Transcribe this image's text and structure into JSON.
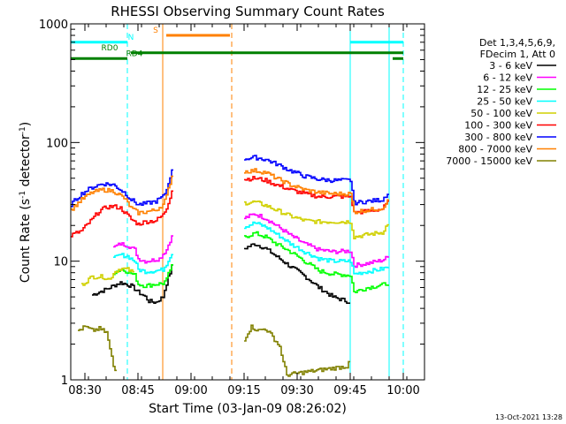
{
  "chart_data": {
    "type": "line",
    "title": "RHESSI Observing Summary Count Rates",
    "xlabel": "Start Time (03-Jan-09 08:26:02)",
    "ylabel_prefix": "Count Rate (s",
    "ylabel_suffix": " detector",
    "ylabel_close": ")",
    "ylabel_exp": "-1",
    "x_range_minutes": [
      0,
      100
    ],
    "y_range": [
      1,
      1000
    ],
    "y_scale": "log",
    "x_ticks": [
      {
        "label": "08:30",
        "t": 4
      },
      {
        "label": "08:45",
        "t": 19
      },
      {
        "label": "09:00",
        "t": 34
      },
      {
        "label": "09:15",
        "t": 49
      },
      {
        "label": "09:30",
        "t": 64
      },
      {
        "label": "09:45",
        "t": 79
      },
      {
        "label": "10:00",
        "t": 94
      }
    ],
    "y_ticks": [
      {
        "label": "1",
        "v": 1
      },
      {
        "label": "10",
        "v": 10
      },
      {
        "label": "100",
        "v": 100
      },
      {
        "label": "1000",
        "v": 1000
      }
    ],
    "legend": {
      "header1": "Det 1,3,4,5,6,9,",
      "header2": "FDecim 1, Att 0",
      "placement": "right"
    },
    "series": [
      {
        "name": "3 - 6 keV",
        "color": "#000000",
        "seg1": [
          [
            6,
            5.2
          ],
          [
            10,
            5.8
          ],
          [
            14,
            6.6
          ],
          [
            17,
            6.2
          ],
          [
            19,
            5.5
          ],
          [
            21,
            5.0
          ],
          [
            22,
            4.6
          ],
          [
            24,
            4.5
          ],
          [
            26,
            5.0
          ],
          [
            27,
            6.5
          ],
          [
            28,
            8.0
          ],
          [
            29,
            10.0
          ]
        ],
        "seg2": [
          [
            49,
            12.8
          ],
          [
            52,
            14.0
          ],
          [
            55,
            12.8
          ],
          [
            58,
            11.0
          ],
          [
            62,
            9.0
          ],
          [
            66,
            7.5
          ],
          [
            70,
            6.0
          ],
          [
            74,
            5.0
          ],
          [
            78,
            4.6
          ],
          [
            79,
            4.5
          ]
        ]
      },
      {
        "name": "6 - 12 keV",
        "color": "#ff00ff",
        "seg1": [
          [
            12,
            13.0
          ],
          [
            14,
            14.0
          ],
          [
            16,
            13.6
          ],
          [
            18,
            12.5
          ],
          [
            19,
            10.5
          ],
          [
            21,
            10.0
          ],
          [
            23,
            10.2
          ],
          [
            25,
            10.5
          ],
          [
            27,
            12.5
          ],
          [
            28,
            15.0
          ],
          [
            29,
            17.0
          ]
        ],
        "seg2": [
          [
            49,
            23.0
          ],
          [
            52,
            25.0
          ],
          [
            55,
            23.0
          ],
          [
            58,
            20.0
          ],
          [
            62,
            16.5
          ],
          [
            66,
            14.0
          ],
          [
            70,
            12.5
          ],
          [
            74,
            12.0
          ],
          [
            79,
            12.2
          ],
          [
            80,
            9.2
          ],
          [
            84,
            9.6
          ],
          [
            88,
            10.2
          ],
          [
            90,
            11.0
          ]
        ]
      },
      {
        "name": "12 - 25 keV",
        "color": "#00ff00",
        "seg1": [
          [
            12,
            8.0
          ],
          [
            14,
            8.5
          ],
          [
            16,
            8.2
          ],
          [
            18,
            7.6
          ],
          [
            19,
            6.4
          ],
          [
            21,
            6.2
          ],
          [
            24,
            6.4
          ],
          [
            26,
            6.5
          ],
          [
            27,
            7.0
          ],
          [
            28,
            8.5
          ],
          [
            29,
            9.5
          ]
        ],
        "seg2": [
          [
            49,
            16.0
          ],
          [
            52,
            17.2
          ],
          [
            55,
            16.0
          ],
          [
            58,
            14.0
          ],
          [
            62,
            12.0
          ],
          [
            66,
            10.0
          ],
          [
            70,
            8.3
          ],
          [
            74,
            7.8
          ],
          [
            79,
            7.6
          ],
          [
            80,
            5.5
          ],
          [
            84,
            6.0
          ],
          [
            88,
            6.3
          ],
          [
            90,
            6.6
          ]
        ]
      },
      {
        "name": "25 - 50 keV",
        "color": "#00ffff",
        "seg1": [
          [
            12,
            10.5
          ],
          [
            14,
            11.3
          ],
          [
            16,
            11.0
          ],
          [
            18,
            10.0
          ],
          [
            19,
            8.5
          ],
          [
            21,
            8.2
          ],
          [
            24,
            8.3
          ],
          [
            26,
            8.5
          ],
          [
            27,
            9.5
          ],
          [
            28,
            11.0
          ],
          [
            29,
            12.0
          ]
        ],
        "seg2": [
          [
            49,
            19.5
          ],
          [
            52,
            21.0
          ],
          [
            55,
            19.5
          ],
          [
            58,
            17.0
          ],
          [
            62,
            14.0
          ],
          [
            66,
            12.0
          ],
          [
            70,
            10.5
          ],
          [
            74,
            10.0
          ],
          [
            79,
            10.0
          ],
          [
            80,
            7.8
          ],
          [
            84,
            8.2
          ],
          [
            88,
            8.6
          ],
          [
            90,
            9.0
          ]
        ]
      },
      {
        "name": "50 - 100 keV",
        "color": "#d0d000",
        "seg1": [
          [
            3,
            6.3
          ],
          [
            6,
            7.4
          ],
          [
            9,
            7.4
          ],
          [
            11,
            7.0
          ],
          [
            12,
            8.0
          ],
          [
            14,
            8.7
          ],
          [
            16,
            8.5
          ],
          [
            18,
            7.9
          ]
        ],
        "seg2": [
          [
            49,
            31.0
          ],
          [
            52,
            31.5
          ],
          [
            55,
            29.5
          ],
          [
            58,
            27.0
          ],
          [
            62,
            24.0
          ],
          [
            66,
            22.0
          ],
          [
            70,
            21.5
          ],
          [
            74,
            21.5
          ],
          [
            79,
            21.5
          ],
          [
            80,
            16.0
          ],
          [
            84,
            16.8
          ],
          [
            88,
            17.5
          ],
          [
            89,
            19.5
          ],
          [
            90,
            20.5
          ]
        ]
      },
      {
        "name": "100 - 300 keV",
        "color": "#ff0000",
        "seg1": [
          [
            0,
            16.5
          ],
          [
            3,
            18.0
          ],
          [
            6,
            22.5
          ],
          [
            8,
            26.5
          ],
          [
            10,
            28.5
          ],
          [
            12,
            29.0
          ],
          [
            14,
            28.0
          ],
          [
            17,
            22.5
          ],
          [
            19,
            20.5
          ],
          [
            21,
            21.5
          ],
          [
            24,
            22.0
          ],
          [
            26,
            24.5
          ],
          [
            27,
            28.0
          ],
          [
            28,
            35.0
          ],
          [
            29,
            45.0
          ]
        ],
        "seg2": [
          [
            49,
            49.0
          ],
          [
            52,
            50.0
          ],
          [
            55,
            48.0
          ],
          [
            58,
            44.0
          ],
          [
            62,
            40.0
          ],
          [
            66,
            37.0
          ],
          [
            70,
            35.0
          ],
          [
            74,
            35.0
          ],
          [
            79,
            35.0
          ],
          [
            80,
            25.5
          ],
          [
            84,
            26.5
          ],
          [
            88,
            27.5
          ],
          [
            89,
            30.0
          ],
          [
            90,
            32.0
          ]
        ]
      },
      {
        "name": "300 - 800 keV",
        "color": "#0000ff",
        "seg1": [
          [
            0,
            30.0
          ],
          [
            3,
            37.0
          ],
          [
            6,
            42.0
          ],
          [
            9,
            45.0
          ],
          [
            12,
            44.0
          ],
          [
            15,
            38.0
          ],
          [
            17,
            33.0
          ],
          [
            19,
            30.0
          ],
          [
            21,
            30.5
          ],
          [
            24,
            32.0
          ],
          [
            26,
            35.0
          ],
          [
            27,
            40.0
          ],
          [
            28,
            52.0
          ],
          [
            29,
            62.0
          ]
        ],
        "seg2": [
          [
            49,
            73.0
          ],
          [
            52,
            75.0
          ],
          [
            55,
            72.0
          ],
          [
            58,
            66.0
          ],
          [
            62,
            58.0
          ],
          [
            66,
            52.0
          ],
          [
            70,
            49.0
          ],
          [
            74,
            48.0
          ],
          [
            79,
            48.0
          ],
          [
            80,
            31.0
          ],
          [
            84,
            32.0
          ],
          [
            88,
            33.0
          ],
          [
            89,
            36.0
          ],
          [
            90,
            38.0
          ]
        ]
      },
      {
        "name": "800 - 7000 keV",
        "color": "#ff8000",
        "seg1": [
          [
            0,
            27.0
          ],
          [
            3,
            33.0
          ],
          [
            6,
            38.0
          ],
          [
            9,
            40.0
          ],
          [
            12,
            39.0
          ],
          [
            15,
            34.0
          ],
          [
            17,
            28.0
          ],
          [
            19,
            25.5
          ],
          [
            21,
            26.0
          ],
          [
            24,
            27.0
          ],
          [
            26,
            30.0
          ],
          [
            27,
            35.0
          ],
          [
            28,
            46.0
          ],
          [
            29,
            58.0
          ]
        ],
        "seg2": [
          [
            49,
            57.0
          ],
          [
            52,
            58.0
          ],
          [
            55,
            56.0
          ],
          [
            58,
            50.0
          ],
          [
            62,
            44.0
          ],
          [
            66,
            40.0
          ],
          [
            70,
            38.0
          ],
          [
            74,
            37.0
          ],
          [
            79,
            37.0
          ],
          [
            80,
            26.0
          ],
          [
            84,
            27.0
          ],
          [
            88,
            28.0
          ],
          [
            89,
            31.0
          ],
          [
            90,
            33.0
          ]
        ]
      },
      {
        "name": "7000 - 15000 keV",
        "color": "#808000",
        "seg1": [
          [
            2,
            2.6
          ],
          [
            4,
            2.8
          ],
          [
            6,
            2.6
          ],
          [
            8,
            2.7
          ],
          [
            10,
            2.5
          ],
          [
            11,
            1.8
          ],
          [
            12,
            1.3
          ],
          [
            13,
            1.1
          ]
        ],
        "seg2": [
          [
            49,
            2.2
          ],
          [
            51,
            2.8
          ],
          [
            53,
            2.6
          ],
          [
            55,
            2.7
          ],
          [
            57,
            2.3
          ],
          [
            59,
            1.9
          ],
          [
            60,
            1.4
          ],
          [
            61,
            1.1
          ],
          [
            78,
            1.3
          ],
          [
            79,
            1.6
          ]
        ]
      }
    ],
    "markers": {
      "flags": [
        {
          "label": "N",
          "color": "#00ffff",
          "y": 700,
          "t1": 0,
          "t2": 16,
          "label_t": 17
        },
        {
          "label": "N",
          "color": "#00ffff",
          "y": 700,
          "t1": 79,
          "t2": 94
        },
        {
          "label": "S",
          "color": "#ff8000",
          "y": 800,
          "t1": 27,
          "t2": 45,
          "label_t": 24
        },
        {
          "label": "RD0",
          "color": "#008000",
          "y": 570,
          "t1": 17,
          "t2": 94,
          "label_t": 11
        },
        {
          "label": "RD4",
          "color": "#008000",
          "y": 510,
          "t1": 0,
          "t2": 16,
          "label_t": 18
        },
        {
          "label": "RD4",
          "color": "#008000",
          "y": 510,
          "t1": 91,
          "t2": 94
        }
      ],
      "vlines": [
        {
          "t": 16,
          "color": "#00ffff",
          "dash": true
        },
        {
          "t": 26,
          "color": "#ff8000",
          "dash": false
        },
        {
          "t": 45.5,
          "color": "#ff8000",
          "dash": true
        },
        {
          "t": 79,
          "color": "#00ffff",
          "dash": false
        },
        {
          "t": 90,
          "color": "#00ffff",
          "dash": false
        },
        {
          "t": 94,
          "color": "#00ffff",
          "dash": true
        }
      ]
    }
  },
  "footer": {
    "timestamp": "13-Oct-2021 13:28"
  }
}
